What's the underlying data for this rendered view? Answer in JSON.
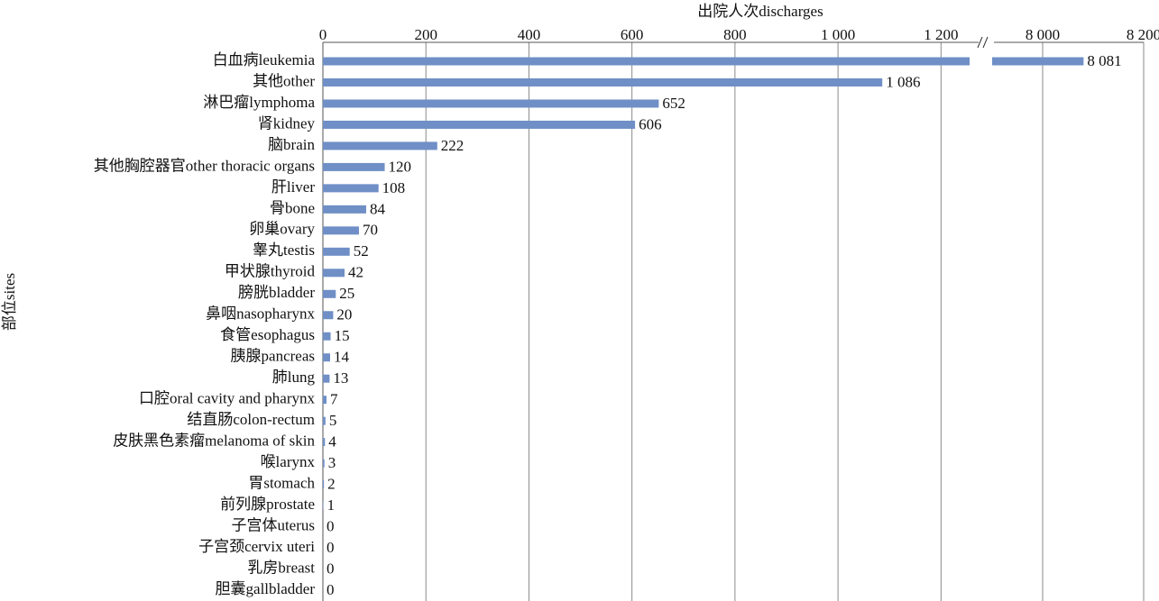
{
  "chart_data": {
    "type": "bar",
    "x_label": "出院人次discharges",
    "y_label": "部位sites",
    "categories": [
      "白血病leukemia",
      "其他other",
      "淋巴瘤lymphoma",
      "肾kidney",
      "脑brain",
      "其他胸腔器官other thoracic organs",
      "肝liver",
      "骨bone",
      "卵巢ovary",
      "睾丸testis",
      "甲状腺thyroid",
      "膀胱bladder",
      "鼻咽nasopharynx",
      "食管esophagus",
      "胰腺pancreas",
      "肺lung",
      "口腔oral cavity and pharynx",
      "结直肠colon-rectum",
      "皮肤黑色素瘤melanoma of skin",
      "喉larynx",
      "胃stomach",
      "前列腺prostate",
      "子宫体uterus",
      "子宫颈cervix uteri",
      "乳房breast",
      "胆囊gallbladder"
    ],
    "values": [
      8081,
      1086,
      652,
      606,
      222,
      120,
      108,
      84,
      70,
      52,
      42,
      25,
      20,
      15,
      14,
      13,
      7,
      5,
      4,
      3,
      2,
      1,
      0,
      0,
      0,
      0
    ],
    "value_labels": [
      "8 081",
      "1 086",
      "652",
      "606",
      "222",
      "120",
      "108",
      "84",
      "70",
      "52",
      "42",
      "25",
      "20",
      "15",
      "14",
      "13",
      "7",
      "5",
      "4",
      "3",
      "2",
      "1",
      "0",
      "0",
      "0",
      "0"
    ],
    "color": "#6f8fc6",
    "xlim": [
      0,
      1280
    ],
    "xticks": [
      0,
      200,
      400,
      600,
      800,
      {
        "value": 1000,
        "label": "1 000"
      },
      {
        "value": 1200,
        "label": "1 200"
      }
    ],
    "x2lim": [
      7900,
      8200
    ],
    "x2ticks": [
      {
        "value": 8000,
        "label": "8 000"
      },
      {
        "value": 8200,
        "label": "8 200"
      }
    ],
    "grid": true
  }
}
